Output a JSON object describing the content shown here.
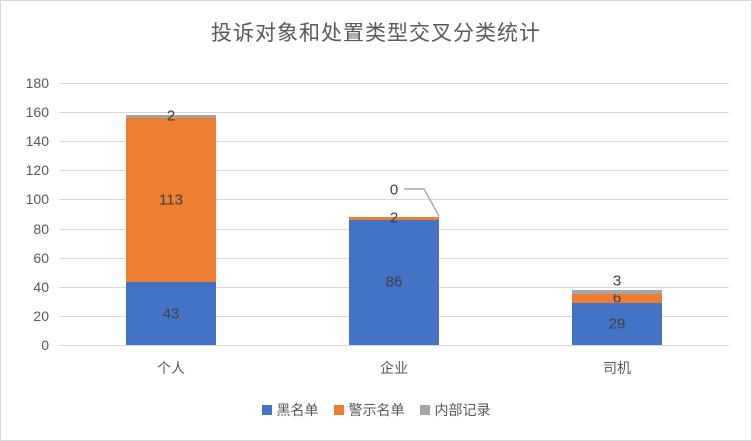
{
  "window": {
    "background": "#ffffff",
    "border_color": "#d9d9d9"
  },
  "chart_data": {
    "type": "bar",
    "stacked": true,
    "title": "投诉对象和处置类型交叉分类统计",
    "categories": [
      "个人",
      "企业",
      "司机"
    ],
    "series": [
      {
        "name": "黑名单",
        "color": "#4472c4",
        "values": [
          43,
          86,
          29
        ],
        "label_placements": [
          "center",
          "center",
          "center"
        ]
      },
      {
        "name": "警示名单",
        "color": "#ed7d31",
        "values": [
          113,
          2,
          6
        ],
        "label_placements": [
          "center",
          "center",
          "center"
        ]
      },
      {
        "name": "内部记录",
        "color": "#a5a5a5",
        "values": [
          2,
          0,
          3
        ],
        "label_placements": [
          "center",
          "callout",
          "above"
        ]
      }
    ],
    "category_totals": [
      158,
      88,
      38
    ],
    "ylim": [
      0,
      180
    ],
    "yticks": [
      0,
      20,
      40,
      60,
      80,
      100,
      120,
      140,
      160,
      180
    ],
    "grid": true,
    "legend_position": "bottom",
    "data_labels": true,
    "styles": {
      "gridline_color": "#d9d9d9",
      "axis_text_color": "#595959",
      "data_label_color": "#404040",
      "title_color": "#595959",
      "leader_line_color": "#a5a5a5"
    }
  }
}
